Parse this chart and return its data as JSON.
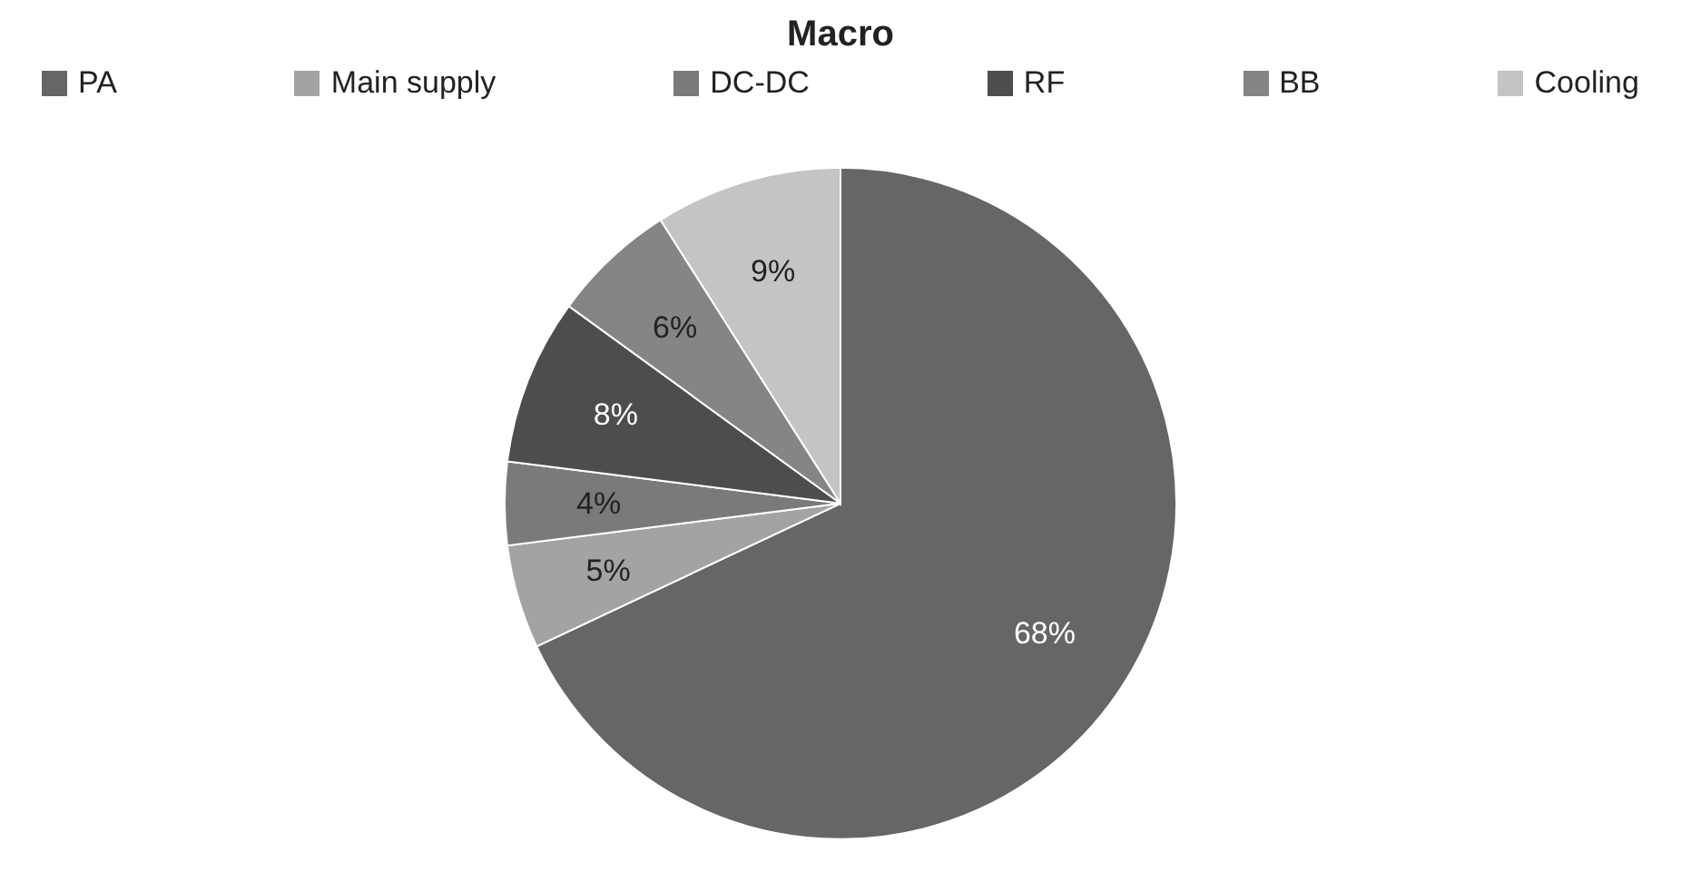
{
  "chart_data": {
    "type": "pie",
    "title": "Macro",
    "categories": [
      "PA",
      "Main supply",
      "DC-DC",
      "RF",
      "BB",
      "Cooling"
    ],
    "values": [
      68,
      5,
      4,
      8,
      6,
      9
    ],
    "colors": [
      "#666666",
      "#a3a3a3",
      "#7a7a7a",
      "#4d4d4d",
      "#858585",
      "#c4c4c4"
    ],
    "value_labels": [
      "68%",
      "5%",
      "4%",
      "8%",
      "6%",
      "9%"
    ],
    "legend": "top"
  }
}
